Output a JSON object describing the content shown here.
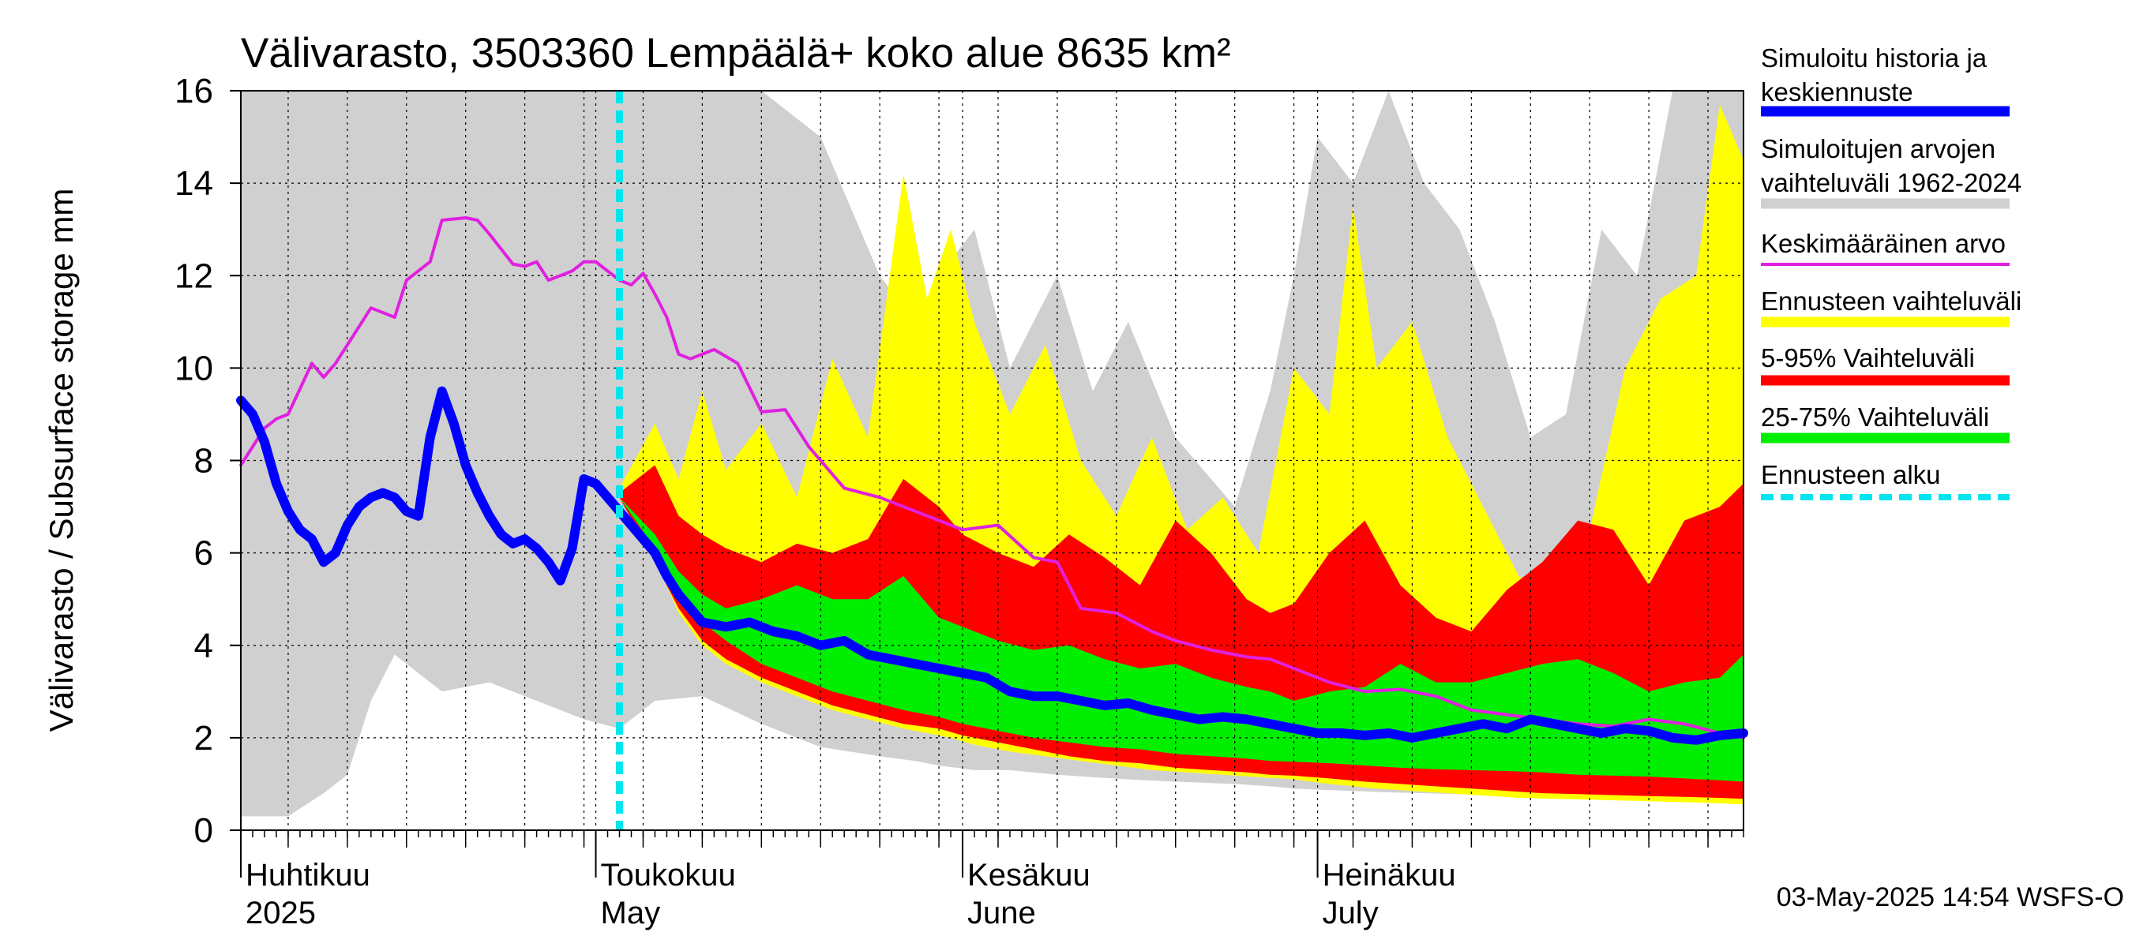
{
  "chart_data": {
    "type": "area",
    "title": "Välivarasto, 3503360 Lempäälä+ koko alue 8635 km²",
    "ylabel": "Välivarasto / Subsurface storage  mm",
    "ylim": [
      0,
      16
    ],
    "yticks": [
      0,
      2,
      4,
      6,
      8,
      10,
      12,
      14,
      16
    ],
    "xlim": [
      1,
      128
    ],
    "forecast_start_day": 33,
    "month_starts": [
      1,
      31,
      62,
      92
    ],
    "month_labels": [
      {
        "day": 1,
        "fi": "Huhtikuu",
        "en": "2025"
      },
      {
        "day": 31,
        "fi": "Toukokuu",
        "en": "May"
      },
      {
        "day": 62,
        "fi": "Kesäkuu",
        "en": "June"
      },
      {
        "day": 92,
        "fi": "Heinäkuu",
        "en": "July"
      }
    ],
    "footer": "03-May-2025 14:54 WSFS-O",
    "legend": [
      {
        "label": "Simuloitu historia ja",
        "label2": "keskiennuste",
        "color": "#0000ff",
        "type": "thick"
      },
      {
        "label": "Simuloitujen arvojen",
        "label2": "vaihteluväli 1962-2024",
        "color": "#d0d0d0",
        "type": "thick"
      },
      {
        "label": "Keskimääräinen arvo",
        "color": "#e020e0",
        "type": "thin"
      },
      {
        "label": "Ennusteen vaihteluväli",
        "color": "#ffff00",
        "type": "thick"
      },
      {
        "label": "5-95% Vaihteluväli",
        "color": "#ff0000",
        "type": "thick"
      },
      {
        "label": "25-75% Vaihteluväli",
        "color": "#00ee00",
        "type": "thick"
      },
      {
        "label": "Ennusteen alku",
        "color": "#00e5ee",
        "type": "dashed"
      }
    ],
    "series": {
      "hist_range": {
        "name": "Simuloitujen arvojen vaihteluväli 1962-2024",
        "color": "#d0d0d0",
        "x": [
          1,
          5,
          8,
          10,
          12,
          14,
          18,
          22,
          26,
          30,
          33,
          36,
          40,
          45,
          50,
          55,
          58,
          60,
          63,
          66,
          70,
          73,
          76,
          80,
          85,
          88,
          90,
          92,
          95,
          98,
          101,
          104,
          107,
          110,
          113,
          116,
          119,
          122,
          125,
          128
        ],
        "upper": [
          16,
          16,
          16,
          16,
          16,
          16,
          16,
          16,
          16,
          16,
          16,
          16,
          16,
          16,
          15,
          12,
          11,
          12,
          13,
          10,
          12,
          9.5,
          11,
          8.5,
          7,
          9.5,
          12,
          15,
          14,
          16,
          14,
          13,
          11,
          8.5,
          9,
          13,
          12,
          16,
          16,
          16
        ],
        "lower": [
          0.3,
          0.3,
          0.8,
          1.2,
          2.8,
          3.8,
          3.0,
          3.2,
          2.8,
          2.4,
          2.2,
          2.8,
          2.9,
          2.3,
          1.8,
          1.6,
          1.5,
          1.4,
          1.3,
          1.3,
          1.2,
          1.15,
          1.1,
          1.05,
          1.0,
          0.95,
          0.9,
          0.88,
          0.85,
          0.82,
          0.8,
          0.78,
          0.76,
          0.74,
          0.72,
          0.7,
          0.68,
          0.66,
          0.64,
          0.62
        ]
      },
      "forecast_range": {
        "name": "Ennusteen vaihteluväli",
        "color": "#ffff00",
        "x": [
          33,
          36,
          38,
          40,
          42,
          45,
          48,
          51,
          54,
          57,
          59,
          61,
          63,
          66,
          69,
          72,
          75,
          78,
          81,
          84,
          87,
          90,
          93,
          95,
          97,
          100,
          103,
          106,
          109,
          112,
          115,
          118,
          121,
          124,
          126,
          128
        ],
        "upper": [
          7.4,
          8.8,
          7.6,
          9.5,
          7.8,
          8.8,
          7.2,
          10.2,
          8.5,
          14.2,
          11.5,
          13.0,
          11.0,
          9.0,
          10.5,
          8.0,
          6.8,
          8.5,
          6.5,
          7.2,
          6.0,
          10.0,
          9.0,
          13.5,
          10.0,
          11.0,
          8.5,
          7.0,
          5.5,
          5.0,
          6.5,
          10.0,
          11.5,
          12.0,
          15.7,
          14.5
        ],
        "lower": [
          7.2,
          5.9,
          4.7,
          4.0,
          3.6,
          3.2,
          2.9,
          2.6,
          2.4,
          2.2,
          2.1,
          2.0,
          1.85,
          1.7,
          1.6,
          1.5,
          1.4,
          1.3,
          1.25,
          1.2,
          1.15,
          1.1,
          1.0,
          0.95,
          0.9,
          0.85,
          0.8,
          0.75,
          0.7,
          0.68,
          0.66,
          0.64,
          0.62,
          0.6,
          0.58,
          0.56
        ]
      },
      "p5_95": {
        "name": "5-95% Vaihteluväli",
        "color": "#ff0000",
        "x": [
          33,
          36,
          38,
          40,
          42,
          45,
          48,
          51,
          54,
          57,
          60,
          62,
          65,
          68,
          71,
          74,
          77,
          80,
          83,
          86,
          88,
          90,
          93,
          96,
          99,
          102,
          105,
          108,
          111,
          114,
          117,
          120,
          123,
          126,
          128
        ],
        "upper": [
          7.3,
          7.9,
          6.8,
          6.4,
          6.1,
          5.8,
          6.2,
          6.0,
          6.3,
          7.6,
          7.0,
          6.4,
          6.0,
          5.7,
          6.4,
          5.9,
          5.3,
          6.7,
          6.0,
          5.0,
          4.7,
          4.9,
          6.0,
          6.7,
          5.3,
          4.6,
          4.3,
          5.2,
          5.8,
          6.7,
          6.5,
          5.3,
          6.7,
          7.0,
          7.5
        ],
        "lower": [
          7.2,
          5.8,
          4.8,
          4.1,
          3.7,
          3.3,
          3.0,
          2.7,
          2.5,
          2.3,
          2.2,
          2.05,
          1.9,
          1.75,
          1.6,
          1.5,
          1.45,
          1.35,
          1.3,
          1.25,
          1.2,
          1.18,
          1.12,
          1.05,
          1.0,
          0.95,
          0.9,
          0.85,
          0.8,
          0.78,
          0.76,
          0.74,
          0.72,
          0.7,
          0.68
        ]
      },
      "p25_75": {
        "name": "25-75% Vaihteluväli",
        "color": "#00ee00",
        "x": [
          33,
          36,
          38,
          40,
          42,
          45,
          48,
          51,
          54,
          57,
          60,
          62,
          65,
          68,
          71,
          74,
          77,
          80,
          83,
          86,
          88,
          90,
          93,
          96,
          99,
          102,
          105,
          108,
          111,
          114,
          117,
          120,
          123,
          126,
          128
        ],
        "upper": [
          7.2,
          6.4,
          5.6,
          5.1,
          4.8,
          5.0,
          5.3,
          5.0,
          5.0,
          5.5,
          4.6,
          4.4,
          4.1,
          3.9,
          4.0,
          3.7,
          3.5,
          3.6,
          3.3,
          3.1,
          3.0,
          2.8,
          3.0,
          3.1,
          3.6,
          3.2,
          3.2,
          3.4,
          3.6,
          3.7,
          3.4,
          3.0,
          3.2,
          3.3,
          3.8
        ],
        "lower": [
          7.2,
          6.1,
          5.2,
          4.5,
          4.1,
          3.6,
          3.3,
          3.0,
          2.8,
          2.6,
          2.45,
          2.3,
          2.15,
          2.0,
          1.9,
          1.8,
          1.75,
          1.65,
          1.6,
          1.55,
          1.5,
          1.48,
          1.45,
          1.4,
          1.35,
          1.32,
          1.3,
          1.28,
          1.25,
          1.2,
          1.18,
          1.16,
          1.12,
          1.08,
          1.05
        ]
      },
      "mean": {
        "name": "Keskimääräinen arvo",
        "color": "#e020e0",
        "x": [
          1,
          3,
          4,
          5,
          7,
          8,
          9,
          10,
          12,
          14,
          15,
          17,
          18,
          20,
          21,
          22,
          24,
          25,
          26,
          27,
          29,
          30,
          31,
          33,
          34,
          35,
          36,
          37,
          38,
          39,
          41,
          43,
          45,
          47,
          49,
          52,
          55,
          58,
          62,
          65,
          68,
          70,
          72,
          75,
          78,
          80,
          83,
          86,
          88,
          90,
          93,
          96,
          99,
          102,
          105,
          108,
          111,
          114,
          117,
          120,
          123,
          126,
          128
        ],
        "values": [
          7.9,
          8.7,
          8.9,
          9.0,
          10.1,
          9.8,
          10.1,
          10.5,
          11.3,
          11.1,
          11.9,
          12.3,
          13.2,
          13.25,
          13.2,
          12.9,
          12.25,
          12.2,
          12.3,
          11.9,
          12.1,
          12.3,
          12.3,
          11.9,
          11.8,
          12.05,
          11.6,
          11.1,
          10.3,
          10.2,
          10.4,
          10.1,
          9.05,
          9.1,
          8.3,
          7.4,
          7.2,
          6.9,
          6.5,
          6.6,
          5.9,
          5.8,
          4.8,
          4.7,
          4.3,
          4.1,
          3.9,
          3.75,
          3.7,
          3.5,
          3.2,
          3.0,
          3.05,
          2.9,
          2.6,
          2.5,
          2.4,
          2.3,
          2.25,
          2.4,
          2.3,
          2.1,
          2.0
        ]
      },
      "median": {
        "name": "Simuloitu historia ja keskiennuste",
        "color": "#0000ff",
        "x": [
          1,
          2,
          3,
          4,
          5,
          6,
          7,
          8,
          9,
          10,
          11,
          12,
          13,
          14,
          15,
          16,
          17,
          18,
          19,
          20,
          21,
          22,
          23,
          24,
          25,
          26,
          27,
          28,
          29,
          30,
          31,
          32,
          33,
          34,
          35,
          36,
          37,
          38,
          39,
          40,
          42,
          44,
          46,
          48,
          50,
          52,
          54,
          56,
          58,
          60,
          62,
          64,
          66,
          68,
          70,
          72,
          74,
          76,
          78,
          80,
          82,
          84,
          86,
          88,
          90,
          92,
          94,
          96,
          98,
          100,
          102,
          104,
          106,
          108,
          110,
          112,
          114,
          116,
          118,
          120,
          122,
          124,
          126,
          128
        ],
        "values": [
          9.3,
          9.0,
          8.4,
          7.5,
          6.9,
          6.5,
          6.3,
          5.8,
          6.0,
          6.6,
          7.0,
          7.2,
          7.3,
          7.2,
          6.9,
          6.8,
          8.5,
          9.5,
          8.8,
          7.9,
          7.3,
          6.8,
          6.4,
          6.2,
          6.3,
          6.1,
          5.8,
          5.4,
          6.1,
          7.6,
          7.5,
          7.2,
          6.9,
          6.6,
          6.3,
          6.0,
          5.5,
          5.1,
          4.8,
          4.5,
          4.4,
          4.5,
          4.3,
          4.2,
          4.0,
          4.1,
          3.8,
          3.7,
          3.6,
          3.5,
          3.4,
          3.3,
          3.0,
          2.9,
          2.9,
          2.8,
          2.7,
          2.75,
          2.6,
          2.5,
          2.4,
          2.45,
          2.4,
          2.3,
          2.2,
          2.1,
          2.1,
          2.05,
          2.1,
          2.0,
          2.1,
          2.2,
          2.3,
          2.2,
          2.4,
          2.3,
          2.2,
          2.1,
          2.2,
          2.15,
          2.0,
          1.95,
          2.05,
          2.1
        ]
      }
    }
  }
}
